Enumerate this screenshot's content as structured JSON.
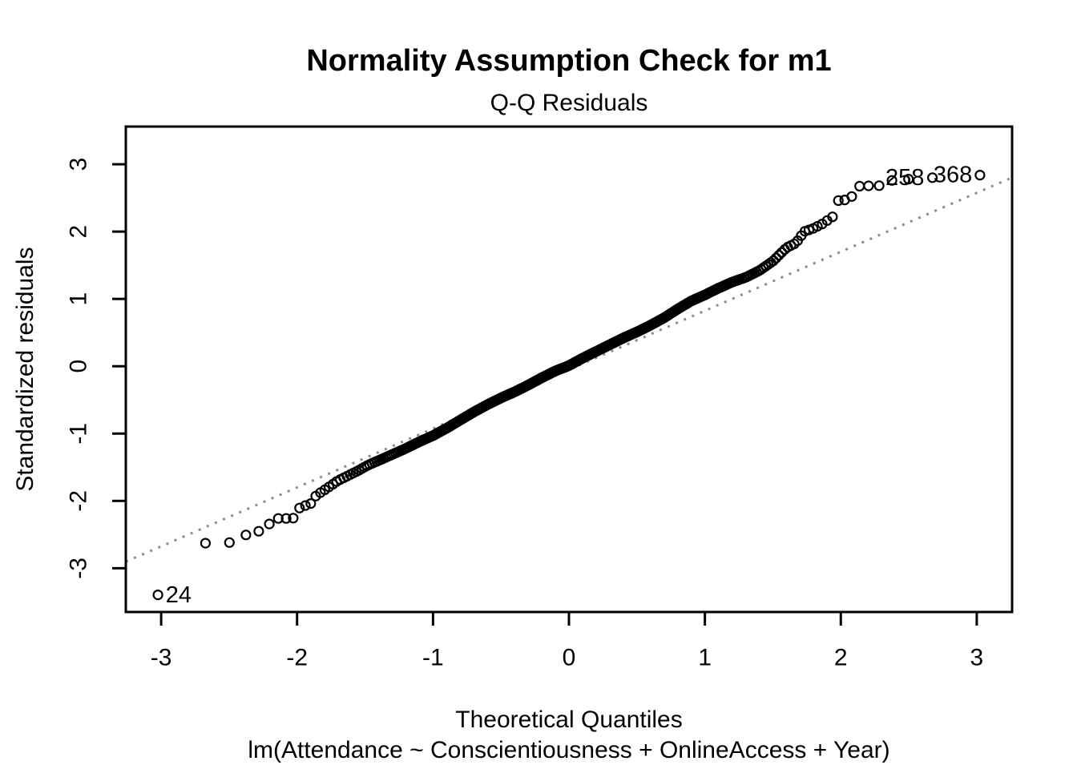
{
  "page": {
    "background": "#ffffff"
  },
  "chart_data": {
    "type": "scatter",
    "kind": "qq-plot",
    "title": "Normality Assumption Check for m1",
    "subtitle": "Q-Q Residuals",
    "xlabel": "Theoretical Quantiles",
    "xlabel_line2": "lm(Attendance ~ Conscientiousness + OnlineAccess + Year)",
    "ylabel": "Standardized residuals",
    "xlim": [
      -3.26,
      3.26
    ],
    "ylim": [
      -3.65,
      3.56
    ],
    "x_ticks": [
      -3,
      -2,
      -1,
      0,
      1,
      2,
      3
    ],
    "y_ticks": [
      -3,
      -2,
      -1,
      0,
      1,
      2,
      3
    ],
    "grid": false,
    "legend_position": "none",
    "n_points": 400,
    "point_style": {
      "shape": "open-circle",
      "radius_px": 5.5,
      "stroke_px": 2.2,
      "color": "#000000"
    },
    "reference_line": {
      "style": "dotted",
      "color": "#8c8c8c",
      "intercept": -0.05,
      "slope": 0.875
    },
    "qq_curve_anchors": [
      [
        -3.03,
        -3.41
      ],
      [
        -2.67,
        -2.62
      ],
      [
        -2.5,
        -2.62
      ],
      [
        -2.37,
        -2.5
      ],
      [
        -2.28,
        -2.45
      ],
      [
        -2.21,
        -2.35
      ],
      [
        -2.14,
        -2.26
      ],
      [
        -2.03,
        -2.26
      ],
      [
        -1.98,
        -2.1
      ],
      [
        -1.9,
        -2.04
      ],
      [
        -1.86,
        -1.92
      ],
      [
        -1.8,
        -1.84
      ],
      [
        -1.75,
        -1.77
      ],
      [
        -1.7,
        -1.7
      ],
      [
        -1.62,
        -1.62
      ],
      [
        -1.55,
        -1.55
      ],
      [
        -1.48,
        -1.47
      ],
      [
        -1.4,
        -1.4
      ],
      [
        -1.3,
        -1.31
      ],
      [
        -1.2,
        -1.22
      ],
      [
        -1.1,
        -1.12
      ],
      [
        -1.0,
        -1.03
      ],
      [
        -0.9,
        -0.92
      ],
      [
        -0.8,
        -0.8
      ],
      [
        -0.7,
        -0.68
      ],
      [
        -0.6,
        -0.57
      ],
      [
        -0.5,
        -0.47
      ],
      [
        -0.4,
        -0.38
      ],
      [
        -0.3,
        -0.28
      ],
      [
        -0.2,
        -0.17
      ],
      [
        -0.1,
        -0.07
      ],
      [
        0.0,
        0.01
      ],
      [
        0.1,
        0.12
      ],
      [
        0.2,
        0.22
      ],
      [
        0.3,
        0.32
      ],
      [
        0.4,
        0.42
      ],
      [
        0.5,
        0.51
      ],
      [
        0.6,
        0.61
      ],
      [
        0.7,
        0.72
      ],
      [
        0.8,
        0.85
      ],
      [
        0.9,
        0.97
      ],
      [
        1.0,
        1.06
      ],
      [
        1.1,
        1.16
      ],
      [
        1.2,
        1.25
      ],
      [
        1.3,
        1.32
      ],
      [
        1.4,
        1.42
      ],
      [
        1.5,
        1.56
      ],
      [
        1.6,
        1.76
      ],
      [
        1.67,
        1.83
      ],
      [
        1.73,
        2.0
      ],
      [
        1.8,
        2.05
      ],
      [
        1.86,
        2.11
      ],
      [
        1.94,
        2.22
      ],
      [
        1.98,
        2.46
      ],
      [
        2.03,
        2.47
      ],
      [
        2.08,
        2.52
      ],
      [
        2.14,
        2.68
      ],
      [
        2.21,
        2.68
      ],
      [
        2.28,
        2.68
      ],
      [
        2.37,
        2.76
      ],
      [
        2.5,
        2.78
      ],
      [
        2.67,
        2.8
      ],
      [
        3.03,
        2.84
      ]
    ],
    "labeled_points": [
      {
        "label": "24",
        "t": -3.023,
        "r": -3.4,
        "label_side": "right"
      },
      {
        "label": "258",
        "t": 2.67,
        "r": 2.8,
        "label_side": "left"
      },
      {
        "label": "368",
        "t": 3.023,
        "r": 2.84,
        "label_side": "left"
      }
    ]
  }
}
